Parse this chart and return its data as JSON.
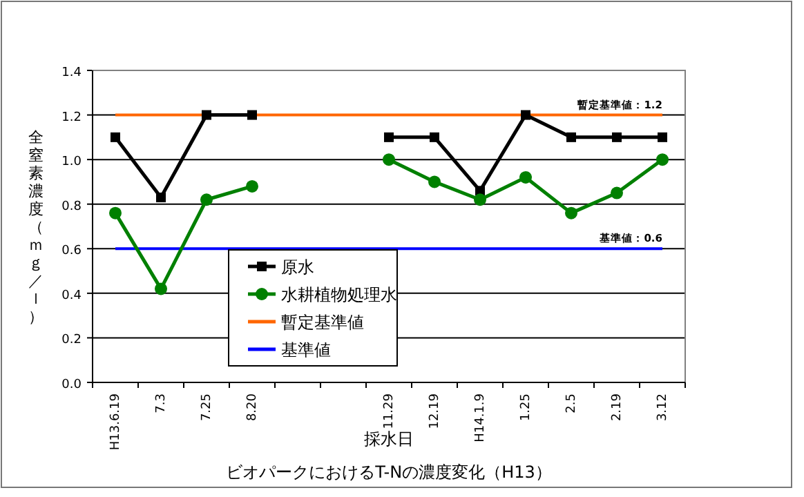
{
  "chart_data": {
    "type": "line",
    "title": "ビオパークにおけるT-Nの濃度変化（H13）",
    "xlabel": "採水日",
    "ylabel": "全窒素濃度（ｍｇ／ｌ）",
    "categories": [
      "H13.6.19",
      "7.3",
      "7.25",
      "8.20",
      null,
      null,
      "11.29",
      "12.19",
      "H14.1.9",
      "1.25",
      "2.5",
      "2.19",
      "3.12"
    ],
    "series": [
      {
        "name": "原水",
        "color": "#000000",
        "marker": "square",
        "values": [
          1.1,
          0.83,
          1.2,
          1.2,
          null,
          null,
          1.1,
          1.1,
          0.86,
          1.2,
          1.1,
          1.1,
          1.1
        ]
      },
      {
        "name": "水耕植物処理水",
        "color": "#008000",
        "marker": "circle",
        "values": [
          0.76,
          0.42,
          0.82,
          0.88,
          null,
          null,
          1.0,
          0.9,
          0.82,
          0.92,
          0.76,
          0.85,
          1.0
        ]
      }
    ],
    "ref_lines": [
      {
        "axis": "y",
        "value": 1.2,
        "label": "暫定基準値",
        "color": "#ff6600"
      },
      {
        "axis": "y",
        "value": 0.6,
        "label": "基準値",
        "color": "#0000ff"
      }
    ],
    "annotations": [
      {
        "text": "暫定基準値：1.2",
        "x": "3.12",
        "y": 1.2
      },
      {
        "text": "基準値：0.6",
        "x": "3.12",
        "y": 0.6
      }
    ],
    "ylim": [
      0,
      1.4
    ],
    "yticks": [
      {
        "value": 0,
        "label": "0.0"
      },
      0.2,
      0.4,
      0.6,
      0.8,
      {
        "value": 1,
        "label": "1.0"
      },
      1.2,
      1.4
    ],
    "grid": "y",
    "legend": "bottom",
    "line_style": "solid"
  }
}
